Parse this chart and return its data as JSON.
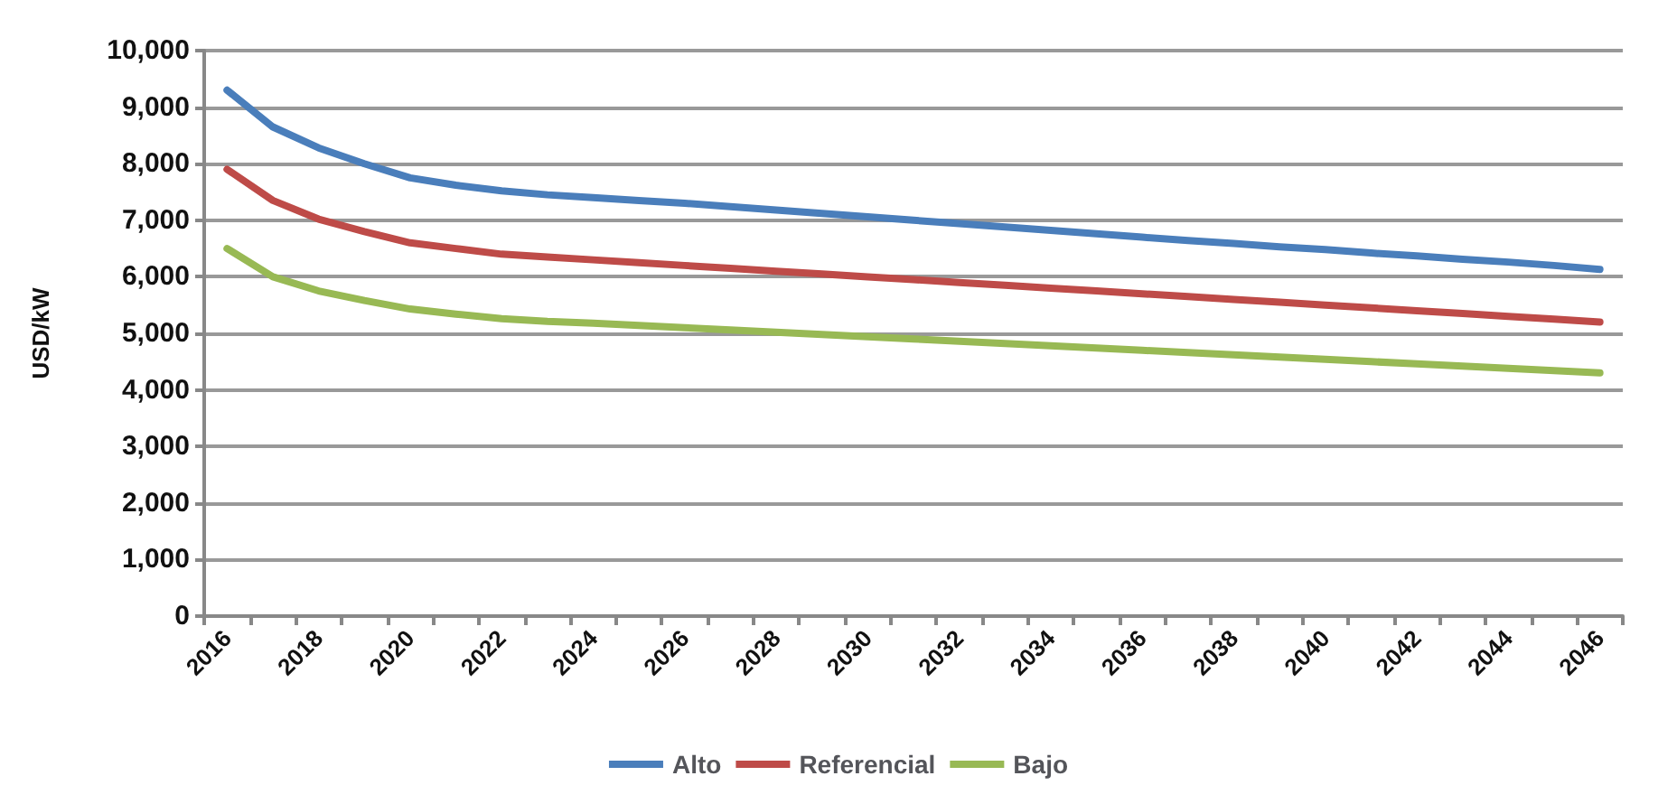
{
  "chart_data": {
    "type": "line",
    "ylabel": "USD/kW",
    "categories": [
      "2016",
      null,
      "2018",
      null,
      "2020",
      null,
      "2022",
      null,
      "2024",
      null,
      "2026",
      null,
      "2028",
      null,
      "2030",
      null,
      "2032",
      null,
      "2034",
      null,
      "2036",
      null,
      "2038",
      null,
      "2040",
      null,
      "2042",
      null,
      "2044",
      null,
      "2046"
    ],
    "series": [
      {
        "name": "Alto",
        "color": "#4a7ebb",
        "values": [
          9300,
          8650,
          8280,
          8000,
          7750,
          7620,
          7520,
          7450,
          7400,
          7350,
          7300,
          7240,
          7180,
          7120,
          7060,
          7000,
          6940,
          6880,
          6820,
          6760,
          6700,
          6640,
          6590,
          6530,
          6480,
          6420,
          6370,
          6310,
          6260,
          6200,
          6130
        ]
      },
      {
        "name": "Referencial",
        "color": "#be4b48",
        "values": [
          7900,
          7350,
          7020,
          6800,
          6600,
          6500,
          6400,
          6350,
          6300,
          6250,
          6200,
          6150,
          6100,
          6050,
          6000,
          5950,
          5900,
          5850,
          5800,
          5750,
          5700,
          5650,
          5600,
          5550,
          5500,
          5450,
          5400,
          5350,
          5300,
          5250,
          5200
        ]
      },
      {
        "name": "Bajo",
        "color": "#98b954",
        "values": [
          6500,
          6000,
          5750,
          5580,
          5430,
          5340,
          5260,
          5210,
          5180,
          5140,
          5100,
          5060,
          5020,
          4980,
          4940,
          4900,
          4860,
          4820,
          4780,
          4740,
          4700,
          4660,
          4620,
          4580,
          4540,
          4500,
          4460,
          4420,
          4380,
          4340,
          4300
        ]
      }
    ],
    "ylim": [
      0,
      10000
    ],
    "yticks": [
      0,
      {
        "value": 1000,
        "label": "1,000"
      },
      {
        "value": 2000,
        "label": "2,000"
      },
      {
        "value": 3000,
        "label": "3,000"
      },
      {
        "value": 4000,
        "label": "4,000"
      },
      {
        "value": 5000,
        "label": "5,000"
      },
      {
        "value": 6000,
        "label": "6,000"
      },
      {
        "value": 7000,
        "label": "7,000"
      },
      {
        "value": 8000,
        "label": "8,000"
      },
      {
        "value": 9000,
        "label": "9,000"
      },
      {
        "value": 10000,
        "label": "10,000"
      }
    ],
    "grid": "y",
    "legend": "bottom",
    "marker": "none",
    "line_style": "solid"
  }
}
